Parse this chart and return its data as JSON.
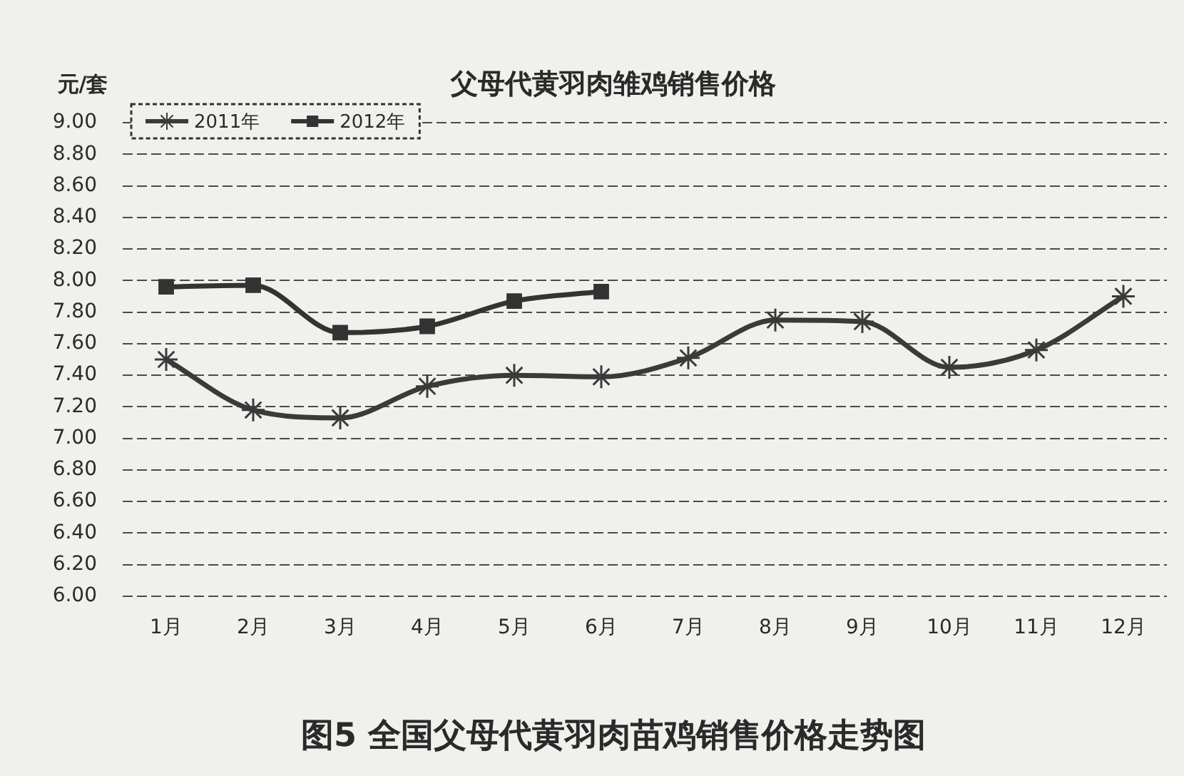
{
  "chart_data": {
    "type": "line",
    "title": "父母代黄羽肉雏鸡销售价格",
    "ylabel": "元/套",
    "annotations": [
      "图5 全国父母代黄羽肉苗鸡销售价格走势图"
    ],
    "categories": [
      "1月",
      "2月",
      "3月",
      "4月",
      "5月",
      "6月",
      "7月",
      "8月",
      "9月",
      "10月",
      "11月",
      "12月"
    ],
    "series": [
      {
        "name": "2011年",
        "color": "#3a3a3a",
        "marker": "cross",
        "values": [
          7.5,
          7.18,
          7.13,
          7.33,
          7.4,
          7.39,
          7.51,
          7.75,
          7.74,
          7.45,
          7.56,
          7.9
        ]
      },
      {
        "name": "2012年",
        "color": "#333333",
        "marker": "square",
        "values": [
          7.96,
          7.97,
          7.67,
          7.71,
          7.87,
          7.93,
          null,
          null,
          null,
          null,
          null,
          null
        ]
      }
    ],
    "ylim": [
      6,
      9
    ],
    "yticks": [
      {
        "value": 6,
        "label": "6.00"
      },
      {
        "value": 6.2,
        "label": "6.20"
      },
      {
        "value": 6.4,
        "label": "6.40"
      },
      {
        "value": 6.6,
        "label": "6.60"
      },
      {
        "value": 6.8,
        "label": "6.80"
      },
      {
        "value": 7,
        "label": "7.00"
      },
      {
        "value": 7.2,
        "label": "7.20"
      },
      {
        "value": 7.4,
        "label": "7.40"
      },
      {
        "value": 7.6,
        "label": "7.60"
      },
      {
        "value": 7.8,
        "label": "7.80"
      },
      {
        "value": 8,
        "label": "8.00"
      },
      {
        "value": 8.2,
        "label": "8.20"
      },
      {
        "value": 8.4,
        "label": "8.40"
      },
      {
        "value": 8.6,
        "label": "8.60"
      },
      {
        "value": 8.8,
        "label": "8.80"
      },
      {
        "value": 9,
        "label": "9.00"
      }
    ],
    "grid": "y",
    "legend": "top left",
    "line_style": "solid"
  }
}
